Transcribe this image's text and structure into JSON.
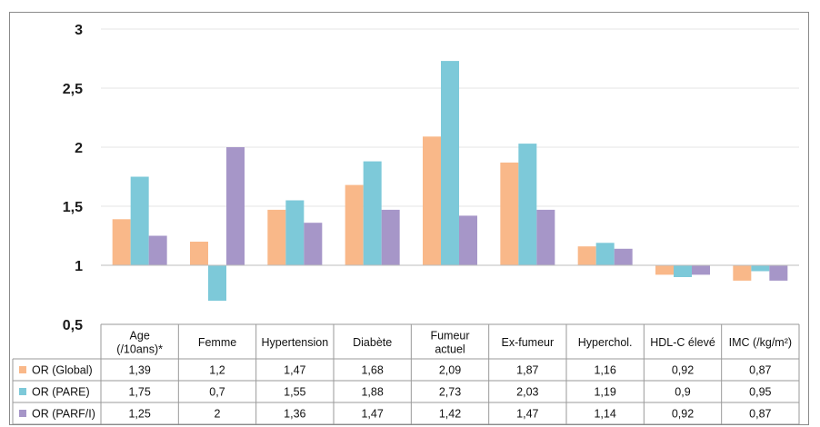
{
  "chart_data": {
    "type": "bar",
    "baseline": 1,
    "ylim": [
      0.5,
      3
    ],
    "yticks": [
      "0,5",
      "1",
      "1,5",
      "2",
      "2,5",
      "3"
    ],
    "ytick_values": [
      0.5,
      1,
      1.5,
      2,
      2.5,
      3
    ],
    "grid": true,
    "categories": [
      [
        "Age",
        "(/10ans)*"
      ],
      [
        "Femme"
      ],
      [
        "Hypertension"
      ],
      [
        "Diabète"
      ],
      [
        "Fumeur",
        "actuel"
      ],
      [
        "Ex-fumeur"
      ],
      [
        "Hyperchol."
      ],
      [
        "HDL-C élevé"
      ],
      [
        "IMC (/kg/m²)"
      ]
    ],
    "series": [
      {
        "name": "OR (Global)",
        "color": "#f9b889",
        "values": [
          1.39,
          1.2,
          1.47,
          1.68,
          2.09,
          1.87,
          1.16,
          0.92,
          0.87
        ],
        "labels": [
          "1,39",
          "1,2",
          "1,47",
          "1,68",
          "2,09",
          "1,87",
          "1,16",
          "0,92",
          "0,87"
        ]
      },
      {
        "name": "OR (PARE)",
        "color": "#7dc9d9",
        "values": [
          1.75,
          0.7,
          1.55,
          1.88,
          2.73,
          2.03,
          1.19,
          0.9,
          0.95
        ],
        "labels": [
          "1,75",
          "0,7",
          "1,55",
          "1,88",
          "2,73",
          "2,03",
          "1,19",
          "0,9",
          "0,95"
        ]
      },
      {
        "name": "OR (PARF/I)",
        "color": "#a696c8",
        "values": [
          1.25,
          2,
          1.36,
          1.47,
          1.42,
          1.47,
          1.14,
          0.92,
          0.87
        ],
        "labels": [
          "1,25",
          "2",
          "1,36",
          "1,47",
          "1,42",
          "1,47",
          "1,14",
          "0,92",
          "0,87"
        ]
      }
    ]
  }
}
